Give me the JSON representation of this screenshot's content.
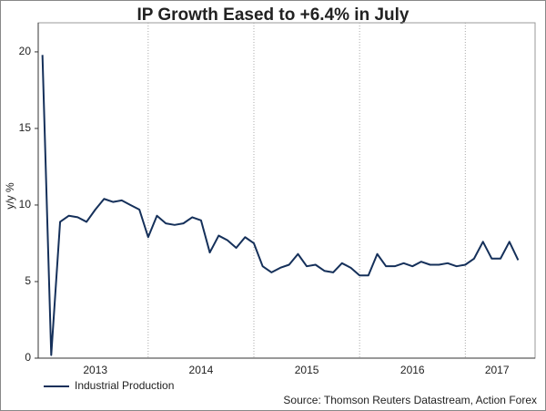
{
  "chart_data": {
    "type": "line",
    "title": "IP Growth Eased to +6.4% in July",
    "y_label": "y/y %",
    "source": "Source: Thomson Reuters Datastream, Action Forex",
    "x": [
      2013.0,
      2013.083,
      2013.167,
      2013.25,
      2013.333,
      2013.417,
      2013.5,
      2013.583,
      2013.667,
      2013.75,
      2013.833,
      2013.917,
      2014.0,
      2014.083,
      2014.167,
      2014.25,
      2014.333,
      2014.417,
      2014.5,
      2014.583,
      2014.667,
      2014.75,
      2014.833,
      2014.917,
      2015.0,
      2015.083,
      2015.167,
      2015.25,
      2015.333,
      2015.417,
      2015.5,
      2015.583,
      2015.667,
      2015.75,
      2015.833,
      2015.917,
      2016.0,
      2016.083,
      2016.167,
      2016.25,
      2016.333,
      2016.417,
      2016.5,
      2016.583,
      2016.667,
      2016.75,
      2016.833,
      2016.917,
      2017.0,
      2017.083,
      2017.167,
      2017.25,
      2017.333,
      2017.417,
      2017.5
    ],
    "series": [
      {
        "name": "Industrial Production",
        "color": "#15305a",
        "values": [
          19.8,
          0.2,
          8.9,
          9.3,
          9.2,
          8.9,
          9.7,
          10.4,
          10.2,
          10.3,
          10.0,
          9.7,
          7.9,
          9.3,
          8.8,
          8.7,
          8.8,
          9.2,
          9.0,
          6.9,
          8.0,
          7.7,
          7.2,
          7.9,
          7.5,
          6.0,
          5.6,
          5.9,
          6.1,
          6.8,
          6.0,
          6.1,
          5.7,
          5.6,
          6.2,
          5.9,
          5.4,
          5.4,
          6.8,
          6.0,
          6.0,
          6.2,
          6.0,
          6.3,
          6.1,
          6.1,
          6.2,
          6.0,
          6.1,
          6.5,
          7.6,
          6.5,
          6.5,
          7.6,
          6.4
        ]
      }
    ],
    "xlim": [
      2012.96,
      2017.66
    ],
    "xticks": [
      {
        "value": 2013.5,
        "label": "2013"
      },
      {
        "value": 2014.5,
        "label": "2014"
      },
      {
        "value": 2015.5,
        "label": "2015"
      },
      {
        "value": 2016.5,
        "label": "2016"
      },
      {
        "value": 2017.3,
        "label": "2017"
      }
    ],
    "xgrid": [
      2014,
      2015,
      2016,
      2017
    ],
    "ylim": [
      0,
      21.9
    ],
    "yticks": [
      0,
      5,
      10,
      15,
      20
    ],
    "legend": "bottom-left"
  }
}
